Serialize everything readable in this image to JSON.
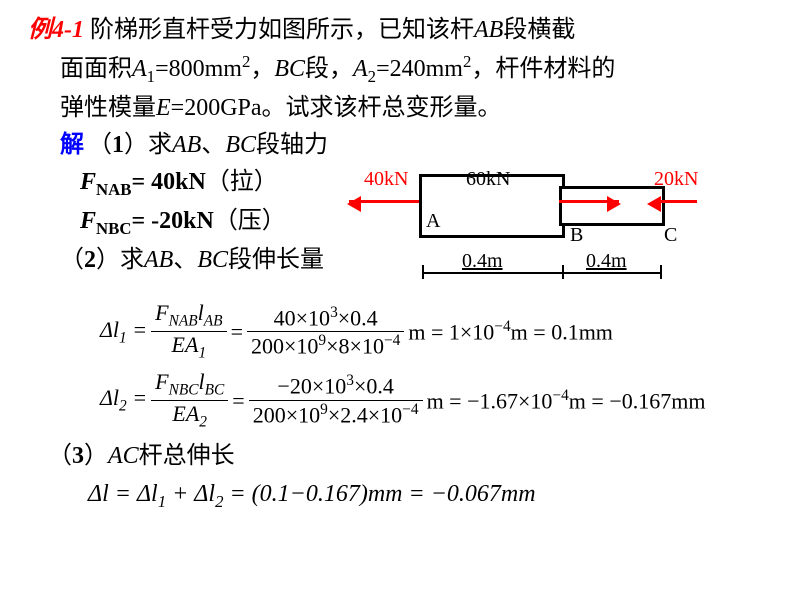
{
  "example_label": "例4-1",
  "intro_line1": "阶梯形直杆受力如图所示，已知该杆<i>AB</i>段横截",
  "intro_line2": "面面积<i>A</i><span class='sub'>1</span>=800mm<span class='sup'>2</span>，<i>BC</i>段，<i>A</i><span class='sub'>2</span>=240mm<span class='sup'>2</span>，杆件材料的",
  "intro_line3": "弹性模量<i>E</i>=200GPa。试求该杆总变形量。",
  "solution_label": "解",
  "step1": "（<span class='bold'>1</span>）求<i>AB</i>、<i>BC</i>段轴力",
  "fnab": "<i class='bold'>F</i><span class='sub bold'>NAB</span><span class='bold'>= 40kN</span>（拉）",
  "fnbc": "<i class='bold'>F</i><span class='sub bold'>NBC</span><span class='bold'>= -20kN</span>（压）",
  "step2": "（<span class='bold'>2</span>）求<i>AB</i>、<i>BC</i>段伸长量",
  "diagram": {
    "load_left": "40kN",
    "load_mid": "60kN",
    "load_right": "20kN",
    "label_a": "A",
    "label_b": "B",
    "label_c": "C",
    "dim_ab": "0.4m",
    "dim_bc": "0.4m"
  },
  "eq1": {
    "lhs": "Δ<i>l</i><span class='sub small'>1</span> =",
    "num1": "<i>F</i><span class='sub small'>NAB</span><i>l</i><span class='sub small'>AB</span>",
    "den1": "<i>EA</i><span class='sub small'>1</span>",
    "num2": "40×10<span class='sup small'>3</span>×0.4",
    "den2": "200×10<span class='sup small'>9</span>×8×10<span class='sup small'>−4</span>",
    "tail": "m = 1×10<span class='sup small'>−4</span>m = 0.1mm"
  },
  "eq2": {
    "lhs": "Δ<i>l</i><span class='sub small'>2</span> =",
    "num1": "<i>F</i><span class='sub small'>NBC</span><i>l</i><span class='sub small'>BC</span>",
    "den1": "<i>EA</i><span class='sub small'>2</span>",
    "num2": "−20×10<span class='sup small'>3</span>×0.4",
    "den2": "200×10<span class='sup small'>9</span>×2.4×10<span class='sup small'>−4</span>",
    "tail": "m = −1.67×10<span class='sup small'>−4</span>m = −0.167mm"
  },
  "step3": "（<span class='bold'>3</span>）<i>AC</i>杆总伸长",
  "eq3": "Δ<i>l</i> = Δ<i>l</i><span class='sub small'>1</span> + Δ<i>l</i><span class='sub small'>2</span> = (0.1−0.167)mm = −0.067mm"
}
